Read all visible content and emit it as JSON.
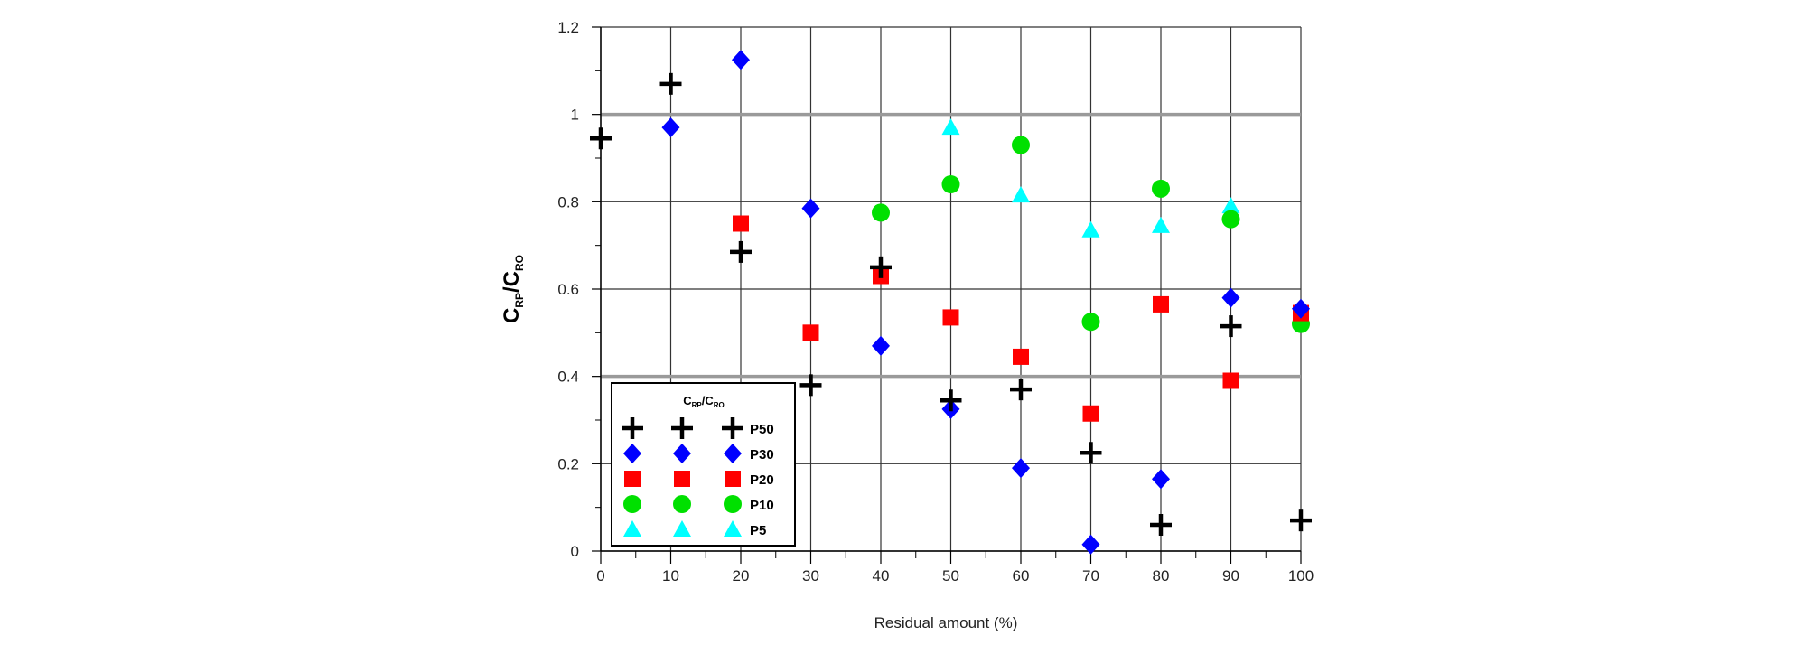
{
  "chart_data": {
    "type": "scatter",
    "xlabel": "Residual amount (%)",
    "ylabel": {
      "main1": "C",
      "sub1": "RP",
      "sep": "/C",
      "sub2": "RO"
    },
    "xlim": [
      0,
      100
    ],
    "ylim": [
      0,
      1.2
    ],
    "x_ticks": [
      0,
      10,
      20,
      30,
      40,
      50,
      60,
      70,
      80,
      90,
      100
    ],
    "y_ticks": [
      0,
      0.2,
      0.4,
      0.6,
      0.8,
      1,
      1.2
    ],
    "y_tick_labels": [
      "0",
      "0.2",
      "0.4",
      "0.6",
      "0.8",
      "1",
      "1.2"
    ],
    "grid": true,
    "legend": {
      "placement": "bottom-left",
      "title": {
        "main1": "C",
        "sub1": "RP",
        "sep": "/C",
        "sub2": "RO"
      }
    },
    "series": [
      {
        "name": "P50",
        "marker": "plus",
        "color": "#000000",
        "points": [
          [
            0,
            0.945
          ],
          [
            10,
            1.07
          ],
          [
            20,
            0.685
          ],
          [
            30,
            0.38
          ],
          [
            40,
            0.65
          ],
          [
            50,
            0.345
          ],
          [
            60,
            0.37
          ],
          [
            70,
            0.225
          ],
          [
            80,
            0.06
          ],
          [
            90,
            0.515
          ],
          [
            100,
            0.07
          ]
        ]
      },
      {
        "name": "P30",
        "marker": "diamond",
        "color": "#0000ff",
        "points": [
          [
            10,
            0.97
          ],
          [
            20,
            1.125
          ],
          [
            30,
            0.785
          ],
          [
            40,
            0.47
          ],
          [
            50,
            0.325
          ],
          [
            60,
            0.19
          ],
          [
            70,
            0.015
          ],
          [
            80,
            0.165
          ],
          [
            90,
            0.58
          ],
          [
            100,
            0.555
          ]
        ]
      },
      {
        "name": "P20",
        "marker": "square",
        "color": "#ff0000",
        "points": [
          [
            20,
            0.75
          ],
          [
            30,
            0.5
          ],
          [
            40,
            0.63
          ],
          [
            50,
            0.535
          ],
          [
            60,
            0.445
          ],
          [
            70,
            0.315
          ],
          [
            80,
            0.565
          ],
          [
            90,
            0.39
          ],
          [
            100,
            0.545
          ]
        ]
      },
      {
        "name": "P10",
        "marker": "circle",
        "color": "#00e000",
        "points": [
          [
            40,
            0.775
          ],
          [
            50,
            0.84
          ],
          [
            60,
            0.93
          ],
          [
            70,
            0.525
          ],
          [
            80,
            0.83
          ],
          [
            90,
            0.76
          ],
          [
            100,
            0.52
          ]
        ]
      },
      {
        "name": "P5",
        "marker": "triangle",
        "color": "#00ffff",
        "points": [
          [
            50,
            0.97
          ],
          [
            60,
            0.815
          ],
          [
            70,
            0.735
          ],
          [
            80,
            0.745
          ],
          [
            90,
            0.79
          ],
          [
            100,
            0.535
          ]
        ]
      }
    ]
  }
}
